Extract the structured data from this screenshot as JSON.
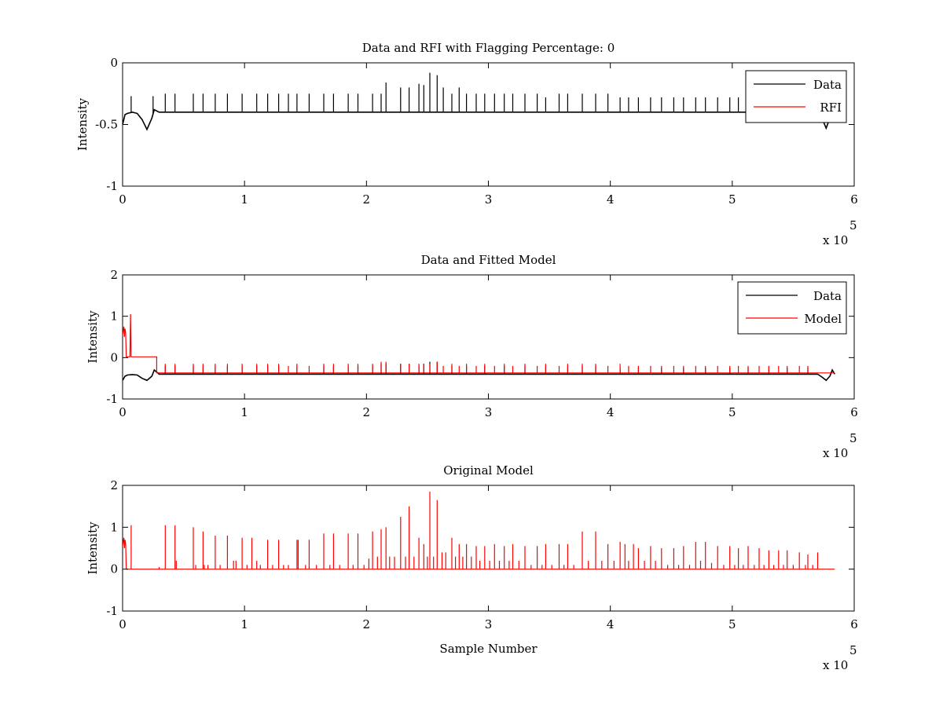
{
  "chart_data": [
    {
      "type": "line",
      "title": "Data and RFI with Flagging Percentage: 0",
      "xlabel": "",
      "ylabel": "Intensity",
      "xlim": [
        0,
        6
      ],
      "ylim": [
        -1,
        0
      ],
      "x_ticks": [
        "0",
        "1",
        "2",
        "3",
        "4",
        "5",
        "6"
      ],
      "y_ticks": [
        "-1",
        "-0.5",
        "0"
      ],
      "x_multiplier": {
        "base": "x 10",
        "exp": "5"
      },
      "grid": false,
      "legend": {
        "placement": "top-right",
        "entries": [
          {
            "label": "Data",
            "color": "#000000"
          },
          {
            "label": "RFI",
            "color": "#ff0000"
          }
        ]
      },
      "series": [
        {
          "name": "Data",
          "color": "#000000",
          "x": [
            0,
            0.02,
            0.04,
            0.08,
            0.12,
            0.16,
            0.2,
            0.24,
            0.26,
            0.3,
            0.5,
            1.0,
            2.0,
            3.0,
            4.0,
            5.0,
            5.5,
            5.7,
            5.74,
            5.77,
            5.8,
            5.84
          ],
          "y": [
            -0.5,
            -0.42,
            -0.41,
            -0.4,
            -0.41,
            -0.46,
            -0.54,
            -0.45,
            -0.38,
            -0.4,
            -0.4,
            -0.4,
            -0.4,
            -0.4,
            -0.4,
            -0.4,
            -0.4,
            -0.4,
            -0.46,
            -0.53,
            -0.45,
            -0.4
          ],
          "spikes_x": [
            0.07,
            0.25,
            0.35,
            0.43,
            0.58,
            0.66,
            0.76,
            0.86,
            0.98,
            1.1,
            1.19,
            1.28,
            1.36,
            1.43,
            1.53,
            1.65,
            1.73,
            1.85,
            1.93,
            2.05,
            2.12,
            2.16,
            2.28,
            2.35,
            2.43,
            2.47,
            2.52,
            2.58,
            2.63,
            2.7,
            2.76,
            2.82,
            2.9,
            2.97,
            3.05,
            3.13,
            3.2,
            3.3,
            3.4,
            3.47,
            3.58,
            3.65,
            3.77,
            3.88,
            3.98,
            4.08,
            4.15,
            4.23,
            4.33,
            4.42,
            4.52,
            4.6,
            4.7,
            4.78,
            4.88,
            4.98,
            5.05,
            5.13,
            5.22,
            5.3,
            5.38,
            5.45,
            5.55,
            5.62,
            5.68
          ],
          "spikes_y": [
            -0.27,
            -0.27,
            -0.25,
            -0.25,
            -0.25,
            -0.25,
            -0.25,
            -0.25,
            -0.25,
            -0.25,
            -0.25,
            -0.25,
            -0.25,
            -0.25,
            -0.25,
            -0.25,
            -0.25,
            -0.25,
            -0.25,
            -0.25,
            -0.25,
            -0.16,
            -0.2,
            -0.2,
            -0.17,
            -0.18,
            -0.08,
            -0.1,
            -0.2,
            -0.25,
            -0.2,
            -0.25,
            -0.25,
            -0.25,
            -0.25,
            -0.25,
            -0.25,
            -0.25,
            -0.25,
            -0.28,
            -0.25,
            -0.25,
            -0.25,
            -0.25,
            -0.25,
            -0.28,
            -0.28,
            -0.28,
            -0.28,
            -0.28,
            -0.28,
            -0.28,
            -0.28,
            -0.28,
            -0.28,
            -0.28,
            -0.28,
            -0.28,
            -0.3,
            -0.3,
            -0.3,
            -0.3,
            -0.32,
            -0.32,
            -0.32
          ]
        },
        {
          "name": "RFI",
          "color": "#ff0000",
          "x": [],
          "y": []
        }
      ]
    },
    {
      "type": "line",
      "title": "Data and Fitted Model",
      "xlabel": "",
      "ylabel": "Intensity",
      "xlim": [
        0,
        6
      ],
      "ylim": [
        -1,
        2
      ],
      "x_ticks": [
        "0",
        "1",
        "2",
        "3",
        "4",
        "5",
        "6"
      ],
      "y_ticks": [
        "-1",
        "0",
        "1",
        "2"
      ],
      "x_multiplier": {
        "base": "x 10",
        "exp": "5"
      },
      "grid": false,
      "legend": {
        "placement": "top-right",
        "entries": [
          {
            "label": "Data",
            "color": "#000000"
          },
          {
            "label": "Model",
            "color": "#ff0000"
          }
        ]
      },
      "series": [
        {
          "name": "Data",
          "color": "#000000",
          "x": [
            0,
            0.02,
            0.04,
            0.08,
            0.12,
            0.16,
            0.2,
            0.24,
            0.26,
            0.3,
            1.0,
            2.0,
            3.0,
            4.0,
            5.0,
            5.7,
            5.74,
            5.77,
            5.8,
            5.82,
            5.84
          ],
          "y": [
            -0.55,
            -0.45,
            -0.42,
            -0.41,
            -0.42,
            -0.5,
            -0.55,
            -0.45,
            -0.3,
            -0.4,
            -0.4,
            -0.4,
            -0.4,
            -0.4,
            -0.4,
            -0.4,
            -0.48,
            -0.55,
            -0.45,
            -0.3,
            -0.4
          ],
          "spikes_x": [
            0.35,
            0.43,
            0.58,
            0.66,
            0.76,
            0.86,
            0.98,
            1.1,
            1.19,
            1.28,
            1.43,
            1.65,
            1.73,
            1.85,
            1.93,
            2.05,
            2.12,
            2.16,
            2.28,
            2.35,
            2.43,
            2.47,
            2.52,
            2.58,
            2.7,
            2.82,
            2.97,
            3.13,
            3.3,
            3.47,
            3.65,
            3.77,
            3.88,
            4.08,
            4.23,
            4.42,
            4.6,
            4.78,
            4.98,
            5.13,
            5.3,
            5.45,
            5.62
          ],
          "spikes_y": [
            -0.2,
            -0.2,
            -0.2,
            -0.2,
            -0.2,
            -0.2,
            -0.2,
            -0.2,
            -0.2,
            -0.2,
            -0.2,
            -0.2,
            -0.2,
            -0.2,
            -0.2,
            -0.2,
            -0.15,
            -0.15,
            -0.15,
            -0.15,
            -0.2,
            -0.15,
            -0.1,
            -0.1,
            -0.2,
            -0.2,
            -0.2,
            -0.2,
            -0.2,
            -0.2,
            -0.2,
            -0.2,
            -0.2,
            -0.25,
            -0.25,
            -0.25,
            -0.25,
            -0.25,
            -0.25,
            -0.25,
            -0.25,
            -0.25,
            -0.25
          ]
        },
        {
          "name": "Model",
          "color": "#ff0000",
          "x": [
            0,
            0.01,
            0.015,
            0.02,
            0.025,
            0.03,
            0.05,
            0.06,
            0.065,
            0.07,
            0.08,
            0.28,
            0.28,
            5.84
          ],
          "y": [
            0.55,
            0.75,
            0.5,
            0.7,
            0.6,
            0.02,
            0.02,
            0.02,
            1.05,
            0.02,
            0.02,
            0.02,
            -0.37,
            -0.37
          ],
          "spikes_x": [
            0.35,
            0.43,
            0.58,
            0.66,
            0.76,
            0.86,
            0.98,
            1.1,
            1.19,
            1.28,
            1.36,
            1.43,
            1.53,
            1.65,
            1.73,
            1.85,
            1.93,
            2.05,
            2.12,
            2.16,
            2.28,
            2.35,
            2.43,
            2.47,
            2.52,
            2.58,
            2.63,
            2.7,
            2.76,
            2.82,
            2.9,
            2.97,
            3.05,
            3.13,
            3.2,
            3.3,
            3.4,
            3.47,
            3.58,
            3.65,
            3.77,
            3.88,
            3.98,
            4.08,
            4.15,
            4.23,
            4.33,
            4.42,
            4.52,
            4.6,
            4.7,
            4.78,
            4.88,
            4.98,
            5.05,
            5.13,
            5.22,
            5.3,
            5.38,
            5.45,
            5.55,
            5.62
          ],
          "spikes_y": [
            -0.15,
            -0.15,
            -0.15,
            -0.15,
            -0.15,
            -0.15,
            -0.15,
            -0.15,
            -0.15,
            -0.15,
            -0.2,
            -0.15,
            -0.2,
            -0.15,
            -0.15,
            -0.15,
            -0.15,
            -0.15,
            -0.1,
            -0.1,
            -0.15,
            -0.15,
            -0.15,
            -0.15,
            -0.15,
            -0.1,
            -0.2,
            -0.15,
            -0.2,
            -0.15,
            -0.2,
            -0.15,
            -0.2,
            -0.15,
            -0.2,
            -0.15,
            -0.2,
            -0.15,
            -0.2,
            -0.15,
            -0.15,
            -0.15,
            -0.2,
            -0.15,
            -0.2,
            -0.2,
            -0.2,
            -0.2,
            -0.2,
            -0.2,
            -0.2,
            -0.2,
            -0.2,
            -0.2,
            -0.2,
            -0.2,
            -0.2,
            -0.2,
            -0.2,
            -0.2,
            -0.2,
            -0.2
          ]
        }
      ]
    },
    {
      "type": "line",
      "title": "Original Model",
      "xlabel": "Sample Number",
      "ylabel": "Intensity",
      "xlim": [
        0,
        6
      ],
      "ylim": [
        -1,
        2
      ],
      "x_ticks": [
        "0",
        "1",
        "2",
        "3",
        "4",
        "5",
        "6"
      ],
      "y_ticks": [
        "-1",
        "0",
        "1",
        "2"
      ],
      "x_multiplier": {
        "base": "x 10",
        "exp": "5"
      },
      "grid": false,
      "legend": null,
      "series": [
        {
          "name": "",
          "color": "#ff0000",
          "x": [
            0,
            0.01,
            0.015,
            0.02,
            0.025,
            0.03,
            5.84
          ],
          "y": [
            0.55,
            0.75,
            0.5,
            0.7,
            0.6,
            0,
            0
          ],
          "spikes_x": [
            0.07,
            0.3,
            0.35,
            0.43,
            0.44,
            0.58,
            0.6,
            0.66,
            0.67,
            0.7,
            0.76,
            0.8,
            0.86,
            0.91,
            0.93,
            0.98,
            1.02,
            1.06,
            1.1,
            1.13,
            1.19,
            1.23,
            1.28,
            1.32,
            1.36,
            1.43,
            1.44,
            1.5,
            1.53,
            1.59,
            1.65,
            1.7,
            1.73,
            1.78,
            1.85,
            1.89,
            1.93,
            1.98,
            2.02,
            2.05,
            2.09,
            2.12,
            2.16,
            2.19,
            2.23,
            2.28,
            2.32,
            2.35,
            2.39,
            2.43,
            2.47,
            2.5,
            2.52,
            2.55,
            2.58,
            2.62,
            2.65,
            2.7,
            2.73,
            2.76,
            2.79,
            2.82,
            2.86,
            2.9,
            2.93,
            2.97,
            3.01,
            3.05,
            3.09,
            3.13,
            3.17,
            3.2,
            3.25,
            3.3,
            3.35,
            3.4,
            3.44,
            3.47,
            3.52,
            3.58,
            3.62,
            3.65,
            3.7,
            3.77,
            3.82,
            3.88,
            3.93,
            3.98,
            4.03,
            4.08,
            4.12,
            4.15,
            4.19,
            4.23,
            4.28,
            4.33,
            4.37,
            4.42,
            4.47,
            4.52,
            4.56,
            4.6,
            4.65,
            4.7,
            4.74,
            4.78,
            4.83,
            4.88,
            4.93,
            4.98,
            5.02,
            5.05,
            5.09,
            5.13,
            5.18,
            5.22,
            5.26,
            5.3,
            5.34,
            5.38,
            5.42,
            5.45,
            5.5,
            5.55,
            5.6,
            5.62,
            5.66,
            5.7
          ],
          "spikes_y": [
            1.05,
            0.05,
            1.05,
            1.05,
            0.2,
            1.0,
            0.1,
            0.9,
            0.1,
            0.1,
            0.8,
            0.1,
            0.8,
            0.2,
            0.2,
            0.75,
            0.1,
            0.75,
            0.2,
            0.1,
            0.7,
            0.1,
            0.7,
            0.1,
            0.1,
            0.7,
            0.7,
            0.1,
            0.7,
            0.1,
            0.85,
            0.1,
            0.85,
            0.1,
            0.85,
            0.1,
            0.85,
            0.1,
            0.25,
            0.9,
            0.3,
            0.95,
            1.0,
            0.3,
            0.3,
            1.25,
            0.3,
            1.5,
            0.3,
            0.75,
            0.6,
            0.3,
            1.85,
            0.3,
            1.65,
            0.4,
            0.4,
            0.75,
            0.3,
            0.6,
            0.3,
            0.6,
            0.3,
            0.55,
            0.2,
            0.55,
            0.2,
            0.6,
            0.2,
            0.55,
            0.2,
            0.6,
            0.2,
            0.55,
            0.1,
            0.55,
            0.1,
            0.6,
            0.1,
            0.6,
            0.1,
            0.6,
            0.1,
            0.9,
            0.2,
            0.9,
            0.2,
            0.6,
            0.2,
            0.65,
            0.6,
            0.2,
            0.6,
            0.5,
            0.2,
            0.55,
            0.2,
            0.5,
            0.1,
            0.5,
            0.1,
            0.55,
            0.1,
            0.65,
            0.2,
            0.65,
            0.15,
            0.55,
            0.1,
            0.55,
            0.1,
            0.5,
            0.1,
            0.55,
            0.1,
            0.5,
            0.1,
            0.45,
            0.1,
            0.45,
            0.1,
            0.45,
            0.1,
            0.4,
            0.1,
            0.35,
            0.1,
            0.4
          ]
        }
      ]
    }
  ]
}
